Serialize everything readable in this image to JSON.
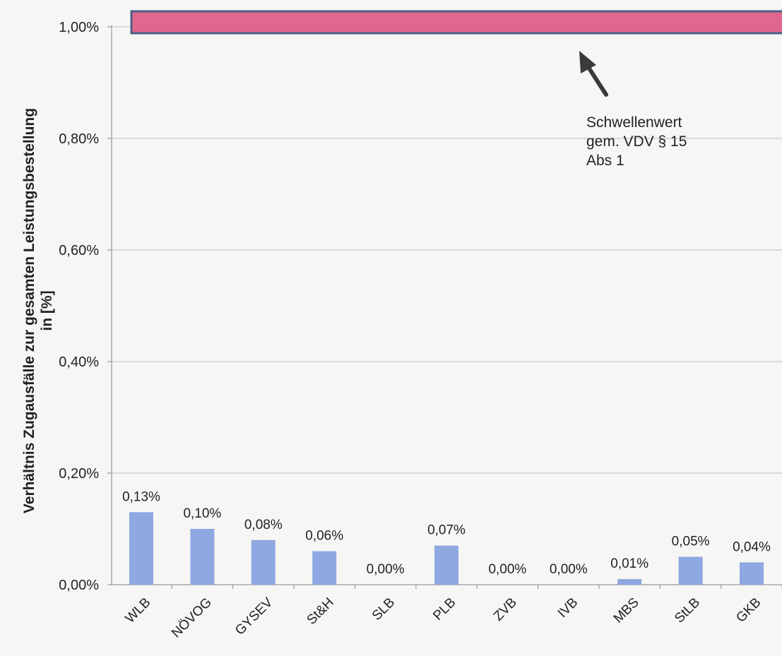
{
  "chart_data": {
    "type": "bar",
    "title": "",
    "xlabel": "",
    "ylabel_line1": "Verhältnis Zugausfälle zur gesamten Leistungsbestellung",
    "ylabel_line2": "in [%]",
    "categories": [
      "WLB",
      "NÖVOG",
      "GYSEV",
      "St&H",
      "SLB",
      "PLB",
      "ZVB",
      "IVB",
      "MBS",
      "StLB",
      "GKB"
    ],
    "values": [
      0.13,
      0.1,
      0.08,
      0.06,
      0.0,
      0.07,
      0.0,
      0.0,
      0.01,
      0.05,
      0.04
    ],
    "data_labels": [
      "0,13%",
      "0,10%",
      "0,08%",
      "0,06%",
      "0,00%",
      "0,07%",
      "0,00%",
      "0,00%",
      "0,01%",
      "0,05%",
      "0,04%"
    ],
    "ylim": [
      0,
      1.0
    ],
    "yticks": [
      0,
      0.2,
      0.4,
      0.6,
      0.8,
      1.0
    ],
    "ytick_labels": [
      "0,00%",
      "0,20%",
      "0,40%",
      "0,60%",
      "0,80%",
      "1,00%"
    ],
    "grid": true,
    "threshold": {
      "value": 1.0,
      "label_lines": [
        "Schwellenwert",
        "gem. VDV § 15",
        "Abs 1"
      ]
    },
    "colors": {
      "bar": "#8fa8e2",
      "threshold_fill": "#e0678f",
      "threshold_border": "#4a5f86",
      "grid": "#c9c9c9",
      "axis": "#9a9a9a",
      "text": "#222222",
      "arrow": "#3a3a3a"
    }
  }
}
